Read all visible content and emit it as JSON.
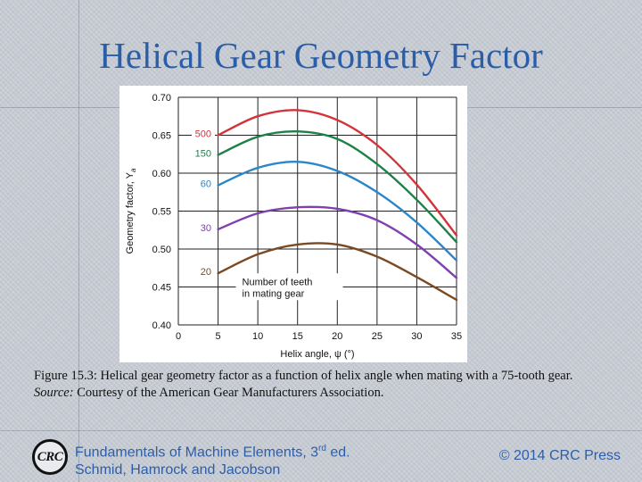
{
  "slide": {
    "title": "Helical Gear Geometry Factor",
    "caption": {
      "part1": "Figure 15.3:  Helical gear geometry factor as a function of helix angle when mating with a 75-tooth gear. ",
      "source_label": "Source:",
      "part2": " Courtesy of the American Gear Manufacturers Association."
    },
    "footer": {
      "logo_text": "CRC",
      "line1_prefix": "Fundamentals of Machine Elements, 3",
      "line1_sup": "rd",
      "line1_suffix": " ed.",
      "line2": "Schmid, Hamrock and Jacobson",
      "copyright": "© 2014 CRC Press"
    }
  },
  "chart_data": {
    "type": "line",
    "title": "",
    "xlabel": "Helix angle, ψ (°)",
    "ylabel": "Geometry factor, Y",
    "ylabel_subscript": "a",
    "xlim": [
      0,
      35
    ],
    "ylim": [
      0.4,
      0.7
    ],
    "x_ticks": [
      "0",
      "5",
      "10",
      "15",
      "20",
      "25",
      "30",
      "35"
    ],
    "y_ticks": [
      "0.40",
      "0.45",
      "0.50",
      "0.55",
      "0.60",
      "0.65",
      "0.70"
    ],
    "grid": true,
    "annotation": [
      "Number of teeth",
      "in mating gear"
    ],
    "series": [
      {
        "name": "500",
        "color": "#d2343a",
        "x": [
          5,
          10,
          15,
          20,
          25,
          30,
          35
        ],
        "y": [
          0.65,
          0.675,
          0.683,
          0.67,
          0.637,
          0.585,
          0.518
        ]
      },
      {
        "name": "150",
        "color": "#1f8048",
        "x": [
          5,
          10,
          15,
          20,
          25,
          30,
          35
        ],
        "y": [
          0.624,
          0.648,
          0.655,
          0.645,
          0.612,
          0.565,
          0.509
        ]
      },
      {
        "name": "60",
        "color": "#2a86c8",
        "x": [
          5,
          10,
          15,
          20,
          25,
          30,
          35
        ],
        "y": [
          0.584,
          0.607,
          0.615,
          0.603,
          0.575,
          0.535,
          0.485
        ]
      },
      {
        "name": "30",
        "color": "#8040b0",
        "x": [
          5,
          10,
          15,
          20,
          25,
          30,
          35
        ],
        "y": [
          0.526,
          0.547,
          0.555,
          0.553,
          0.538,
          0.506,
          0.462
        ]
      },
      {
        "name": "20",
        "color": "#7b4a22",
        "x": [
          5,
          10,
          15,
          20,
          25,
          30,
          35
        ],
        "y": [
          0.468,
          0.493,
          0.506,
          0.506,
          0.49,
          0.463,
          0.433
        ]
      }
    ]
  }
}
